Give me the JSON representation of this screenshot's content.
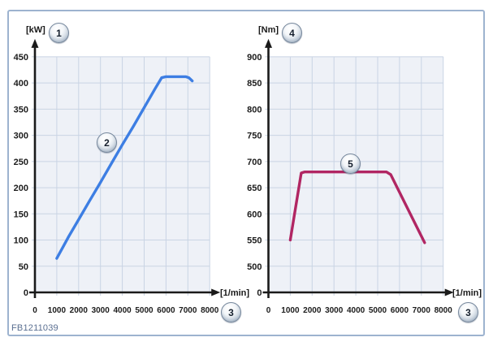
{
  "figure_code": "FB1211039",
  "colors": {
    "power_curve": "#3d7ee3",
    "torque_curve": "#b12663",
    "grid_line": "#c9d4e4",
    "grid_bg": "#eef1f7",
    "axis": "#1a1a1a",
    "tick_text": "#1c1c1c",
    "frame_border": "#9db3cf",
    "code_text": "#5a6f91"
  },
  "chart_data": [
    {
      "type": "line",
      "id": "engine-power",
      "title": "",
      "y_unit": "[kW]",
      "x_unit": "[1/min]",
      "y_axis_badge": "1",
      "curve_badge": "2",
      "x_axis_badge": "3",
      "xlim": [
        0,
        8000
      ],
      "ylim": [
        0,
        450
      ],
      "grid": true,
      "x_tick_labels": [
        0,
        1000,
        2000,
        3000,
        4000,
        5000,
        6000,
        7000,
        8000
      ],
      "y_tick_labels": [
        0,
        50,
        100,
        150,
        200,
        250,
        300,
        350,
        400,
        450
      ],
      "y_scale": {
        "step": 50,
        "first_gridline_value": 50
      },
      "curve_badge_anchor": [
        3250,
        287
      ],
      "series": [
        {
          "name": "power-curve",
          "color": "#3d7ee3",
          "points": [
            [
              1000,
              65
            ],
            [
              1300,
              88
            ],
            [
              1550,
              107
            ],
            [
              2000,
              139
            ],
            [
              2500,
              175
            ],
            [
              3000,
              210
            ],
            [
              3500,
              246
            ],
            [
              4000,
              282
            ],
            [
              4500,
              317
            ],
            [
              5000,
              353
            ],
            [
              5500,
              389
            ],
            [
              5800,
              410
            ],
            [
              6000,
              412
            ],
            [
              6900,
              412
            ],
            [
              7050,
              410
            ],
            [
              7200,
              404
            ]
          ]
        }
      ]
    },
    {
      "type": "line",
      "id": "engine-torque",
      "title": "",
      "y_unit": "[Nm]",
      "x_unit": "[1/min]",
      "y_axis_badge": "4",
      "curve_badge": "5",
      "x_axis_badge": "3",
      "xlim": [
        0,
        8000
      ],
      "ylim": [
        0,
        900
      ],
      "grid": true,
      "x_tick_labels": [
        0,
        1000,
        2000,
        3000,
        4000,
        5000,
        6000,
        7000,
        8000
      ],
      "y_tick_labels": [
        0,
        500,
        550,
        600,
        650,
        700,
        750,
        800,
        850,
        900
      ],
      "y_scale": {
        "step": 50,
        "first_gridline_value": 500
      },
      "curve_badge_anchor": [
        3720,
        698
      ],
      "series": [
        {
          "name": "torque-curve",
          "color": "#b12663",
          "points": [
            [
              1000,
              550
            ],
            [
              1500,
              678
            ],
            [
              1650,
              680
            ],
            [
              5400,
              680
            ],
            [
              5600,
              675
            ],
            [
              7150,
              545
            ]
          ]
        }
      ]
    }
  ]
}
